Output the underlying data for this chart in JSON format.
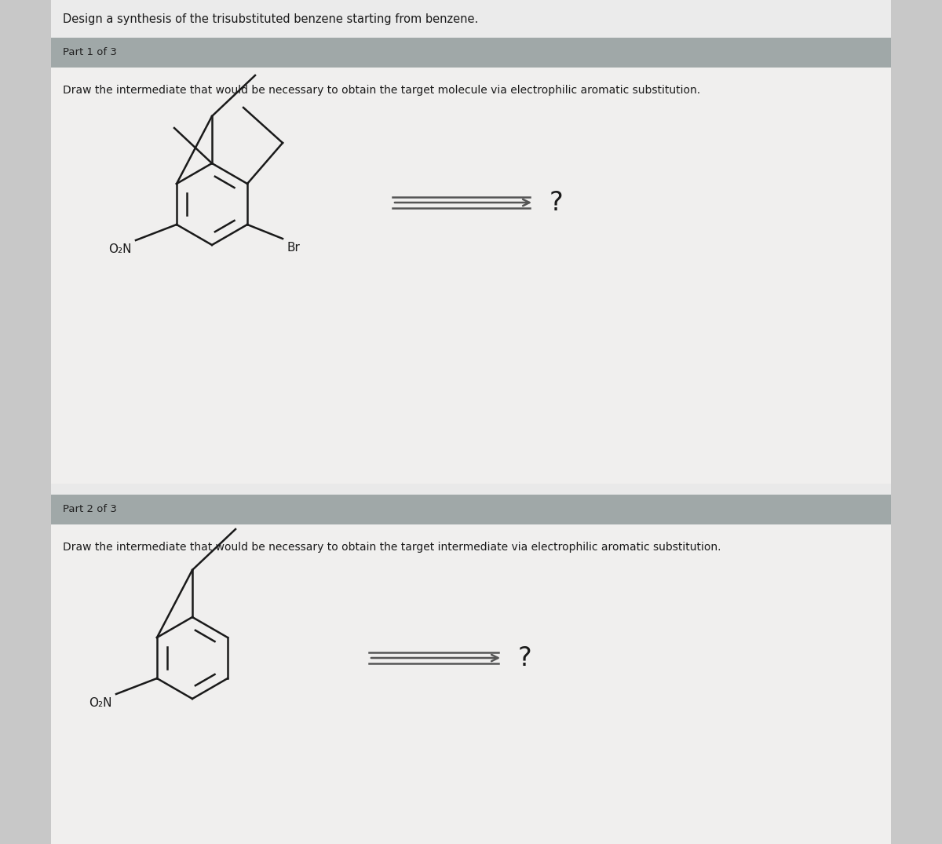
{
  "outer_bg": "#c8c8c8",
  "page_bg": "#e8e8e8",
  "title_bg": "#ebebeb",
  "panel_bg": "#f2f2f2",
  "header_bg": "#a0a8a8",
  "text_color": "#1a1a1a",
  "bond_color": "#1a1a1a",
  "arrow_color": "#555555",
  "title_text": "Design a synthesis of the trisubstituted benzene starting from benzene.",
  "part1_label": "Part 1 of 3",
  "part1_desc": "Draw the intermediate that would be necessary to obtain the target molecule via electrophilic aromatic substitution.",
  "part2_label": "Part 2 of 3",
  "part2_desc": "Draw the intermediate that would be necessary to obtain the target intermediate via electrophilic aromatic substitution.",
  "question_mark": "?",
  "o2n_label": "O₂N",
  "br_label": "Br",
  "title_fontsize": 10.5,
  "label_fontsize": 9.5,
  "desc_fontsize": 10,
  "chem_fontsize": 10,
  "qmark_fontsize": 20
}
